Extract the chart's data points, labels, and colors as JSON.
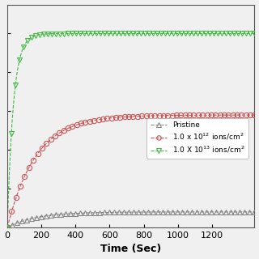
{
  "title": "",
  "xlabel": "Time (Sec)",
  "ylabel": "",
  "xlim": [
    0,
    1450
  ],
  "ylim": [
    0,
    1.15
  ],
  "xticks": [
    0,
    200,
    400,
    600,
    800,
    1000,
    1200
  ],
  "background_color": "#f0f0f0",
  "plot_bg_color": "#f0f0f0",
  "series": [
    {
      "label": "Pristine",
      "color": "#888888",
      "marker": "^",
      "marker_size": 4.5,
      "linestyle": "--",
      "linewidth": 0.8,
      "saturation_value": 0.08,
      "rise_rate": 0.006,
      "n_markers": 52
    },
    {
      "label": "1.0 x 10$^{12}$ ions/cm$^2$",
      "color": "#cc5555",
      "marker": "o",
      "marker_size": 4.5,
      "linestyle": "--",
      "linewidth": 0.8,
      "saturation_value": 0.58,
      "rise_rate": 0.006,
      "n_markers": 58
    },
    {
      "label": "1.0 X 10$^{13}$ ions/cm$^2$",
      "color": "#44bb44",
      "marker": "v",
      "marker_size": 4.5,
      "linestyle": "--",
      "linewidth": 0.8,
      "saturation_value": 1.0,
      "rise_rate": 0.028,
      "n_markers": 62
    }
  ],
  "legend_fontsize": 6.5,
  "axis_fontsize": 9,
  "tick_fontsize": 8
}
